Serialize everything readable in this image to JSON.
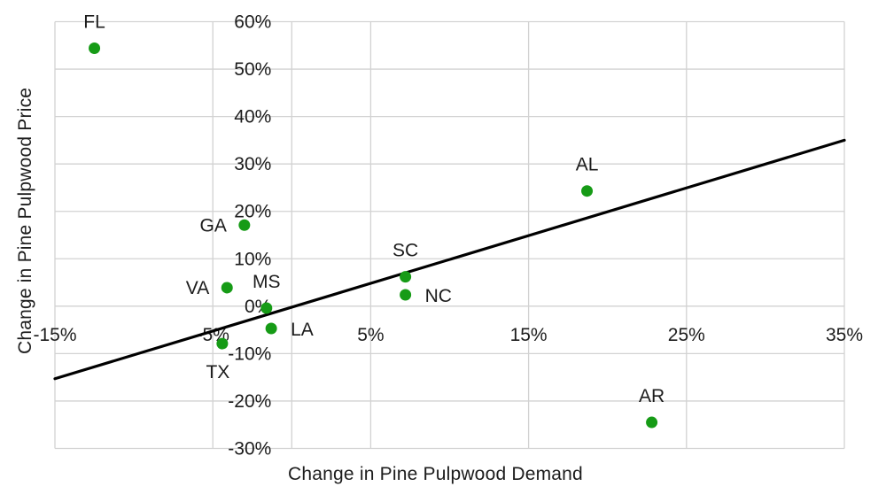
{
  "chart_data": {
    "type": "scatter",
    "title": "",
    "xlabel": "Change in Pine Pulpwood Demand",
    "ylabel": "Change in Pine Pulpwood Price",
    "xlim": [
      -15,
      35
    ],
    "ylim": [
      -30,
      60
    ],
    "grid": true,
    "legend": "none",
    "axes_cross_at_zero": true,
    "x_axis": {
      "gridlines": [
        -15,
        -5,
        0,
        5,
        15,
        25,
        35
      ],
      "ticks": [
        {
          "v": -15,
          "label": "-15%"
        },
        {
          "v": -5,
          "label": "-5%"
        },
        {
          "v": 5,
          "label": "5%"
        },
        {
          "v": 15,
          "label": "15%"
        },
        {
          "v": 25,
          "label": "25%"
        },
        {
          "v": 35,
          "label": "35%"
        }
      ]
    },
    "y_axis": {
      "gridlines": [
        60,
        50,
        40,
        30,
        20,
        10,
        0,
        -10,
        -20,
        -30
      ],
      "ticks": [
        {
          "v": 60,
          "label": "60%"
        },
        {
          "v": 50,
          "label": "50%"
        },
        {
          "v": 40,
          "label": "40%"
        },
        {
          "v": 30,
          "label": "30%"
        },
        {
          "v": 20,
          "label": "20%"
        },
        {
          "v": 10,
          "label": "10%"
        },
        {
          "v": 0,
          "label": "0%"
        },
        {
          "v": -10,
          "label": "-10%"
        },
        {
          "v": -20,
          "label": "-20%"
        },
        {
          "v": -30,
          "label": "-30%"
        }
      ]
    },
    "points": [
      {
        "label": "FL",
        "x": -12.5,
        "y": 54.4,
        "label_pos": "above"
      },
      {
        "label": "GA",
        "x": -3.0,
        "y": 17.1,
        "label_pos": "left"
      },
      {
        "label": "VA",
        "x": -4.1,
        "y": 3.9,
        "label_pos": "left"
      },
      {
        "label": "MS",
        "x": -1.6,
        "y": -0.4,
        "label_pos": "above"
      },
      {
        "label": "LA",
        "x": -1.3,
        "y": -4.7,
        "label_pos": "right"
      },
      {
        "label": "TX",
        "x": -4.4,
        "y": -7.9,
        "label_pos": "below"
      },
      {
        "label": "SC",
        "x": 7.2,
        "y": 6.2,
        "label_pos": "above"
      },
      {
        "label": "NC",
        "x": 7.2,
        "y": 2.4,
        "label_pos": "right"
      },
      {
        "label": "AL",
        "x": 18.7,
        "y": 24.3,
        "label_pos": "above"
      },
      {
        "label": "AR",
        "x": 22.8,
        "y": -24.5,
        "label_pos": "above"
      }
    ],
    "trendline": {
      "x1": -15,
      "y1": -15.3,
      "x2": 35,
      "y2": 35.0
    }
  },
  "colors": {
    "point": "#169b16",
    "trendline": "#000000",
    "gridline": "#d2d2d2",
    "text": "#1c1c1c",
    "background": "#ffffff"
  }
}
